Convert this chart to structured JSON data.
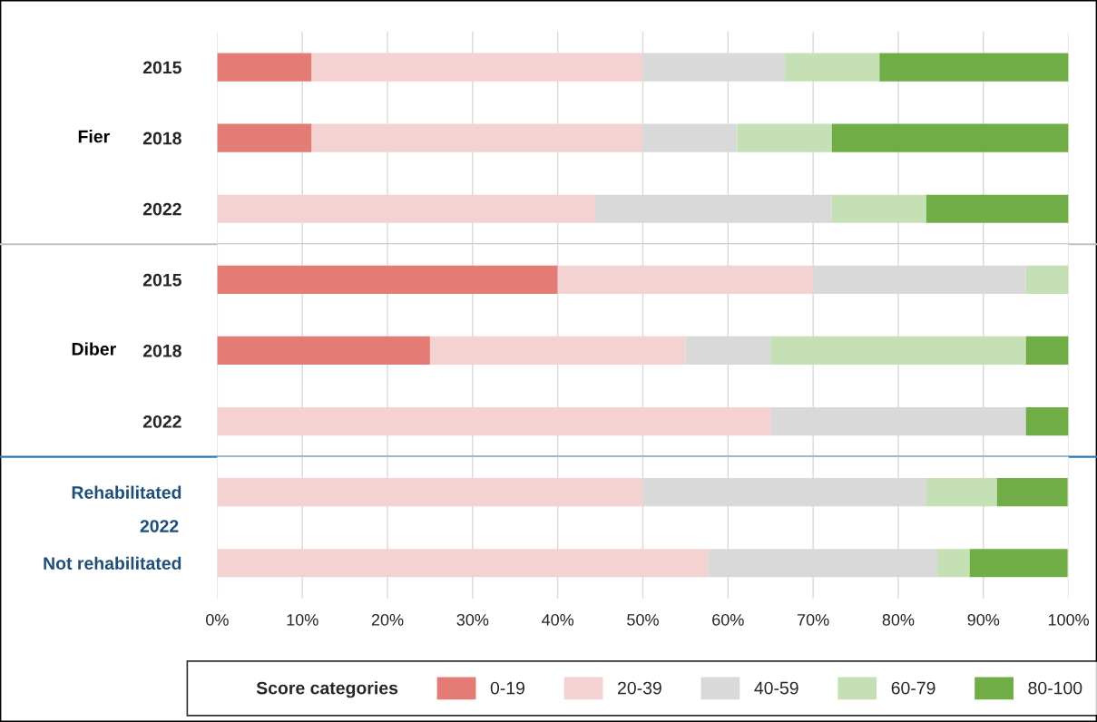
{
  "chart_data": [
    {
      "type": "bar",
      "orientation": "horizontal",
      "stacked": true,
      "ylabel": "Fier",
      "categories": [
        "2015",
        "2018",
        "2022"
      ],
      "series": [
        {
          "color": "#e27c75",
          "values": [
            11.1,
            11.1,
            0
          ]
        },
        {
          "color": "#f4d2d1",
          "values": [
            38.9,
            38.9,
            44.4
          ]
        },
        {
          "color": "#d9d9d9",
          "values": [
            16.7,
            11.1,
            27.8
          ]
        },
        {
          "color": "#c5e0b4",
          "values": [
            11.1,
            11.1,
            11.1
          ]
        },
        {
          "color": "#70ad47",
          "values": [
            22.2,
            27.8,
            16.7
          ]
        }
      ],
      "xlim": [
        0,
        100
      ],
      "xticks": [
        {
          "value": 0,
          "label": null
        },
        {
          "value": 10,
          "label": null
        },
        {
          "value": 20,
          "label": null
        },
        {
          "value": 30,
          "label": null
        },
        {
          "value": 40,
          "label": null
        },
        {
          "value": 50,
          "label": null
        },
        {
          "value": 60,
          "label": null
        },
        {
          "value": 70,
          "label": null
        },
        {
          "value": 80,
          "label": null
        },
        {
          "value": 90,
          "label": null
        },
        {
          "value": 100,
          "label": null
        }
      ],
      "tick_labels": "y",
      "grid": "x"
    },
    {
      "type": "bar",
      "orientation": "horizontal",
      "stacked": true,
      "ylabel": "Diber",
      "categories": [
        "2015",
        "2018",
        "2022"
      ],
      "series": [
        {
          "color": "#e27c75",
          "values": [
            40,
            25,
            0
          ]
        },
        {
          "color": "#f4d2d1",
          "values": [
            30,
            30,
            65
          ]
        },
        {
          "color": "#d9d9d9",
          "values": [
            25,
            10,
            30
          ]
        },
        {
          "color": "#c5e0b4",
          "values": [
            5,
            30,
            0
          ]
        },
        {
          "color": "#70ad47",
          "values": [
            0,
            5,
            5
          ]
        }
      ],
      "xlim": [
        0,
        100
      ],
      "xticks": [
        {
          "value": 0,
          "label": null
        },
        {
          "value": 10,
          "label": null
        },
        {
          "value": 20,
          "label": null
        },
        {
          "value": 30,
          "label": null
        },
        {
          "value": 40,
          "label": null
        },
        {
          "value": 50,
          "label": null
        },
        {
          "value": 60,
          "label": null
        },
        {
          "value": 70,
          "label": null
        },
        {
          "value": 80,
          "label": null
        },
        {
          "value": 90,
          "label": null
        },
        {
          "value": 100,
          "label": null
        }
      ],
      "tick_labels": "y",
      "grid": "x"
    },
    {
      "type": "bar",
      "orientation": "horizontal",
      "stacked": true,
      "ylabel": "2022",
      "categories": [
        "Rehabilitated",
        "Not rehabilitated"
      ],
      "series": [
        {
          "name": "0-19",
          "color": "#e27c75",
          "values": [
            0,
            0
          ]
        },
        {
          "name": "20-39",
          "color": "#f4d2d1",
          "values": [
            50,
            57.7
          ]
        },
        {
          "name": "40-59",
          "color": "#d9d9d9",
          "values": [
            33.3,
            26.9
          ]
        },
        {
          "name": "60-79",
          "color": "#c5e0b4",
          "values": [
            8.3,
            3.8
          ]
        },
        {
          "name": "80-100",
          "color": "#70ad47",
          "values": [
            8.3,
            11.5
          ]
        }
      ],
      "xlim": [
        0,
        100
      ],
      "xticks": [
        {
          "value": 0,
          "label": "0%"
        },
        {
          "value": 10,
          "label": "10%"
        },
        {
          "value": 20,
          "label": "20%"
        },
        {
          "value": 30,
          "label": "30%"
        },
        {
          "value": 40,
          "label": "40%"
        },
        {
          "value": 50,
          "label": "50%"
        },
        {
          "value": 60,
          "label": "60%"
        },
        {
          "value": 70,
          "label": "70%"
        },
        {
          "value": 80,
          "label": "80%"
        },
        {
          "value": 90,
          "label": "90%"
        },
        {
          "value": 100,
          "label": "100%"
        }
      ],
      "grid": "x",
      "legend": "bottom",
      "legend_title": "Score categories"
    }
  ]
}
